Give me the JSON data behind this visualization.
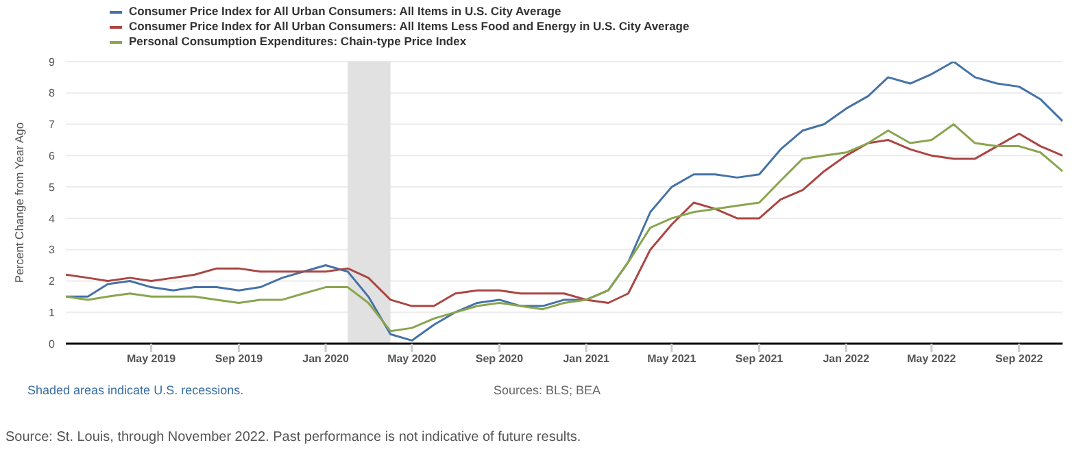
{
  "chart_data": {
    "type": "line",
    "ylabel": "Percent Change from Year Ago",
    "x": [
      "2019-01",
      "2019-02",
      "2019-03",
      "2019-04",
      "2019-05",
      "2019-06",
      "2019-07",
      "2019-08",
      "2019-09",
      "2019-10",
      "2019-11",
      "2019-12",
      "2020-01",
      "2020-02",
      "2020-03",
      "2020-04",
      "2020-05",
      "2020-06",
      "2020-07",
      "2020-08",
      "2020-09",
      "2020-10",
      "2020-11",
      "2020-12",
      "2021-01",
      "2021-02",
      "2021-03",
      "2021-04",
      "2021-05",
      "2021-06",
      "2021-07",
      "2021-08",
      "2021-09",
      "2021-10",
      "2021-11",
      "2021-12",
      "2022-01",
      "2022-02",
      "2022-03",
      "2022-04",
      "2022-05",
      "2022-06",
      "2022-07",
      "2022-08",
      "2022-09",
      "2022-10",
      "2022-11"
    ],
    "series": [
      {
        "name": "Consumer Price Index for All Urban Consumers: All Items in U.S. City Average",
        "color": "#4572a7",
        "values": [
          1.5,
          1.5,
          1.9,
          2.0,
          1.8,
          1.7,
          1.8,
          1.8,
          1.7,
          1.8,
          2.1,
          2.3,
          2.5,
          2.3,
          1.5,
          0.3,
          0.1,
          0.6,
          1.0,
          1.3,
          1.4,
          1.2,
          1.2,
          1.4,
          1.4,
          1.7,
          2.6,
          4.2,
          5.0,
          5.4,
          5.4,
          5.3,
          5.4,
          6.2,
          6.8,
          7.0,
          7.5,
          7.9,
          8.5,
          8.3,
          8.6,
          9.0,
          8.5,
          8.3,
          8.2,
          7.8,
          7.1
        ]
      },
      {
        "name": "Consumer Price Index for All Urban Consumers: All Items Less Food and Energy in U.S. City Average",
        "color": "#aa4643",
        "values": [
          2.2,
          2.1,
          2.0,
          2.1,
          2.0,
          2.1,
          2.2,
          2.4,
          2.4,
          2.3,
          2.3,
          2.3,
          2.3,
          2.4,
          2.1,
          1.4,
          1.2,
          1.2,
          1.6,
          1.7,
          1.7,
          1.6,
          1.6,
          1.6,
          1.4,
          1.3,
          1.6,
          3.0,
          3.8,
          4.5,
          4.3,
          4.0,
          4.0,
          4.6,
          4.9,
          5.5,
          6.0,
          6.4,
          6.5,
          6.2,
          6.0,
          5.9,
          5.9,
          6.3,
          6.7,
          6.3,
          6.0
        ]
      },
      {
        "name": "Personal Consumption Expenditures: Chain-type Price Index",
        "color": "#89a54e",
        "values": [
          1.5,
          1.4,
          1.5,
          1.6,
          1.5,
          1.5,
          1.5,
          1.4,
          1.3,
          1.4,
          1.4,
          1.6,
          1.8,
          1.8,
          1.3,
          0.4,
          0.5,
          0.8,
          1.0,
          1.2,
          1.3,
          1.2,
          1.1,
          1.3,
          1.4,
          1.7,
          2.6,
          3.7,
          4.0,
          4.2,
          4.3,
          4.4,
          4.5,
          5.2,
          5.9,
          6.0,
          6.1,
          6.4,
          6.8,
          6.4,
          6.5,
          7.0,
          6.4,
          6.3,
          6.3,
          6.1,
          5.5
        ]
      }
    ],
    "xlim": [
      "2019-01",
      "2022-11"
    ],
    "xticks": [
      {
        "value": "2019-05",
        "label": "May 2019"
      },
      {
        "value": "2019-09",
        "label": "Sep 2019"
      },
      {
        "value": "2020-01",
        "label": "Jan 2020"
      },
      {
        "value": "2020-05",
        "label": "May 2020"
      },
      {
        "value": "2020-09",
        "label": "Sep 2020"
      },
      {
        "value": "2021-01",
        "label": "Jan 2021"
      },
      {
        "value": "2021-05",
        "label": "May 2021"
      },
      {
        "value": "2021-09",
        "label": "Sep 2021"
      },
      {
        "value": "2022-01",
        "label": "Jan 2022"
      },
      {
        "value": "2022-05",
        "label": "May 2022"
      },
      {
        "value": "2022-09",
        "label": "Sep 2022"
      }
    ],
    "ylim": [
      0,
      9
    ],
    "yticks": [
      0,
      1,
      2,
      3,
      4,
      5,
      6,
      7,
      8,
      9
    ],
    "grid": "y",
    "legend": "top left",
    "marker": "none",
    "line_style": "solid",
    "bands": [
      {
        "axis": "x",
        "from": "2020-02",
        "to": "2020-04",
        "color": "#e1e1e1"
      }
    ],
    "annotations": [
      "Shaded areas indicate U.S. recessions.",
      "Sources: BLS; BEA",
      "Source: St. Louis, through November 2022. Past performance is not indicative of future results."
    ]
  }
}
